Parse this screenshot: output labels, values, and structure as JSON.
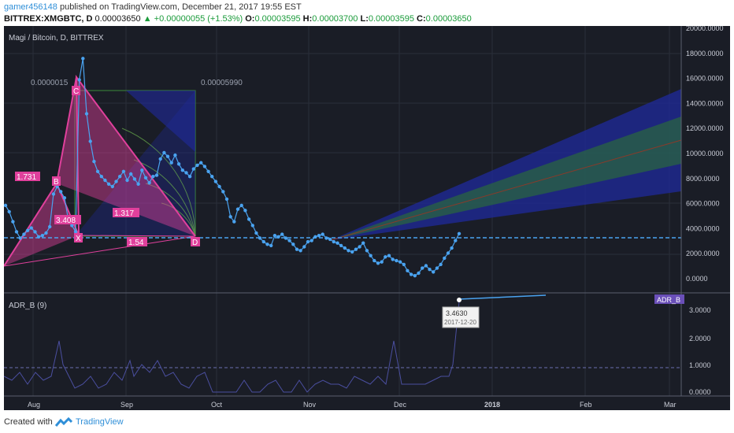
{
  "header": {
    "user": "gamer456148",
    "published_text": "published on TradingView.com, December 21, 2017 19:55 EST",
    "symbol": "BITTREX:XMGBTC, D",
    "last": "0.00003650",
    "change": "▲ +0.00000055 (+1.53%)",
    "o_label": "O:",
    "o": "0.00003595",
    "h_label": "H:",
    "h": "0.00003700",
    "l_label": "L:",
    "l": "0.00003595",
    "c_label": "C:",
    "c": "0.00003650"
  },
  "chart": {
    "title": "Magi / Bitcoin, D, BITTREX",
    "harmonic_labels": {
      "C": "C",
      "B": "B",
      "X": "X",
      "D": "D",
      "r1731": "1.731",
      "r3408": "3.408",
      "r1317": "1.317",
      "r154": "1.54"
    },
    "price_label_left": "0.0000015",
    "price_label_right": "0.00005990",
    "price_axis": [
      "20000.0000",
      "18000.0000",
      "16000.0000",
      "14000.0000",
      "12000.0000",
      "10000.0000",
      "8000.0000",
      "6000.0000",
      "4000.0000",
      "2000.0000",
      "0.0000"
    ],
    "time_axis": [
      "Aug",
      "Sep",
      "Oct",
      "Nov",
      "Dec",
      "2018",
      "Feb",
      "Mar"
    ],
    "indicator_title": "ADR_B (9)",
    "indicator_badge": "ADR_B",
    "indicator_axis": [
      "3.0000",
      "2.0000",
      "1.0000",
      "0.0000"
    ],
    "tooltip_value": "3.4630",
    "tooltip_date": "2017-12-20"
  },
  "chart_data": {
    "type": "line",
    "series": [
      {
        "values": [
          5900,
          5400,
          4600,
          3800,
          3300,
          3600,
          3900,
          4100,
          3800,
          3400,
          3500,
          3700,
          4200,
          6800,
          7400,
          7000,
          6500,
          4800,
          4300,
          3800,
          15900,
          17600,
          13200,
          11000,
          9400,
          8600,
          8200,
          7900,
          7600,
          7400,
          7800,
          8200,
          8600,
          7900,
          8400,
          8000,
          7600,
          8700,
          8100,
          7700,
          8200,
          8300,
          9600,
          10100,
          9800,
          9300,
          9900,
          9200,
          8700,
          8500,
          8200,
          8800,
          9100,
          9300,
          9000,
          8600,
          8200,
          7800,
          7400,
          7000,
          6400,
          5000,
          4600,
          5600,
          5900,
          5500,
          4800,
          4300,
          3700,
          3300,
          3000,
          2800,
          2700,
          3500,
          3400,
          3600,
          3300,
          3100,
          2800,
          2400,
          2300,
          2600,
          3000,
          3100,
          3400,
          3500,
          3600,
          3300,
          3200,
          3000,
          2900,
          2700,
          2500,
          2300,
          2200,
          2400,
          2600,
          2900,
          2300,
          1900,
          1500,
          1300,
          1400,
          1800,
          1900,
          1600,
          1500,
          1400,
          1200,
          700,
          400,
          300,
          500,
          900,
          1100,
          800,
          600,
          900,
          1200,
          1700,
          2100,
          2500,
          3100,
          3650
        ]
      }
    ],
    "current_price_line": 3250,
    "ylim": [
      -800,
      20500
    ]
  },
  "colors": {
    "panel_bg": "#1a1d26",
    "price_line": "#4aa3f0",
    "harmonic": "#e0409c",
    "fan_blue": "#1f2a9c",
    "fan_green": "#2d7a2a"
  }
}
